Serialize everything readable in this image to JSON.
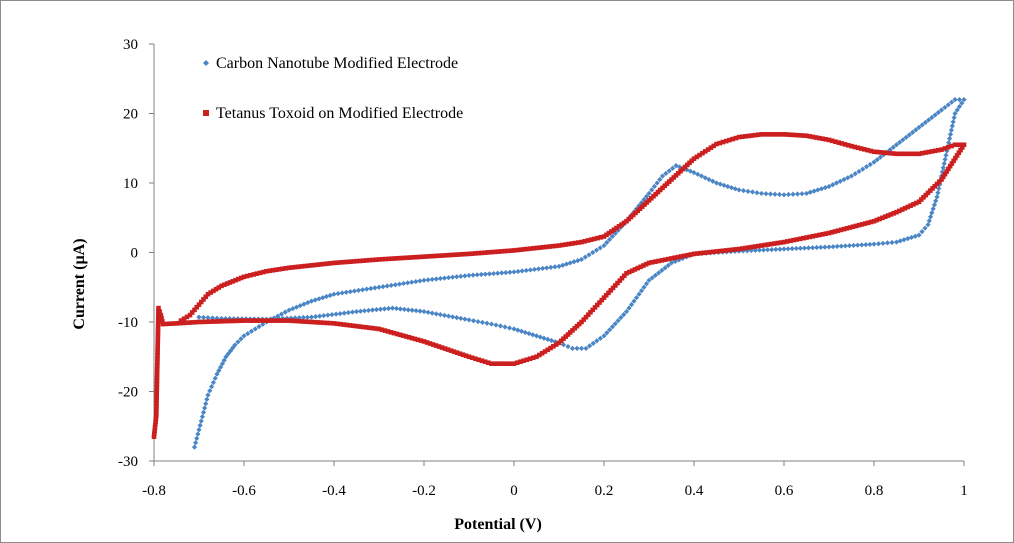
{
  "chart_data": {
    "type": "scatter",
    "xlabel": "Potential (V)",
    "ylabel": "Current (µA)",
    "xlim": [
      -0.8,
      1
    ],
    "ylim": [
      -30,
      30
    ],
    "xticks": [
      -0.8,
      -0.6,
      -0.4,
      -0.2,
      0,
      0.2,
      0.4,
      0.6,
      0.8,
      1
    ],
    "yticks": [
      -30,
      -20,
      -10,
      0,
      10,
      20,
      30
    ],
    "grid": false,
    "legend_position": "top-left",
    "series": [
      {
        "name": "Carbon Nanotube Modified Electrode",
        "color": "#4a86c5",
        "marker": "diamond",
        "points": [
          [
            -0.71,
            -28
          ],
          [
            -0.7,
            -25.5
          ],
          [
            -0.69,
            -23
          ],
          [
            -0.68,
            -20.5
          ],
          [
            -0.66,
            -17.5
          ],
          [
            -0.64,
            -15
          ],
          [
            -0.62,
            -13.3
          ],
          [
            -0.6,
            -12
          ],
          [
            -0.55,
            -10
          ],
          [
            -0.5,
            -8.3
          ],
          [
            -0.45,
            -7
          ],
          [
            -0.4,
            -6
          ],
          [
            -0.3,
            -5
          ],
          [
            -0.2,
            -4
          ],
          [
            -0.1,
            -3.3
          ],
          [
            0.0,
            -2.8
          ],
          [
            0.1,
            -2
          ],
          [
            0.15,
            -1
          ],
          [
            0.2,
            1
          ],
          [
            0.25,
            4.5
          ],
          [
            0.3,
            8.5
          ],
          [
            0.33,
            11
          ],
          [
            0.36,
            12.5
          ],
          [
            0.4,
            11.5
          ],
          [
            0.45,
            10
          ],
          [
            0.5,
            9
          ],
          [
            0.55,
            8.5
          ],
          [
            0.6,
            8.3
          ],
          [
            0.65,
            8.5
          ],
          [
            0.7,
            9.5
          ],
          [
            0.75,
            11
          ],
          [
            0.8,
            13
          ],
          [
            0.85,
            15.5
          ],
          [
            0.9,
            18
          ],
          [
            0.95,
            20.5
          ],
          [
            0.98,
            22
          ],
          [
            1.0,
            22
          ],
          [
            0.98,
            20
          ],
          [
            0.96,
            14
          ],
          [
            0.94,
            8
          ],
          [
            0.92,
            4
          ],
          [
            0.9,
            2.5
          ],
          [
            0.85,
            1.5
          ],
          [
            0.8,
            1.2
          ],
          [
            0.7,
            0.8
          ],
          [
            0.6,
            0.5
          ],
          [
            0.5,
            0.2
          ],
          [
            0.4,
            -0.2
          ],
          [
            0.35,
            -1.5
          ],
          [
            0.3,
            -4
          ],
          [
            0.25,
            -8.5
          ],
          [
            0.2,
            -12
          ],
          [
            0.16,
            -13.8
          ],
          [
            0.13,
            -13.8
          ],
          [
            0.1,
            -13
          ],
          [
            0.05,
            -12
          ],
          [
            0.0,
            -11
          ],
          [
            -0.05,
            -10.3
          ],
          [
            -0.1,
            -9.7
          ],
          [
            -0.2,
            -8.5
          ],
          [
            -0.27,
            -8
          ],
          [
            -0.35,
            -8.5
          ],
          [
            -0.45,
            -9.3
          ],
          [
            -0.55,
            -9.6
          ],
          [
            -0.65,
            -9.5
          ],
          [
            -0.7,
            -9.3
          ]
        ]
      },
      {
        "name": "Tetanus Toxoid on Modified Electrode",
        "color": "#cc1f1f",
        "marker": "square",
        "points": [
          [
            -0.8,
            -26.5
          ],
          [
            -0.795,
            -23.5
          ],
          [
            -0.79,
            -8
          ],
          [
            -0.785,
            -9
          ],
          [
            -0.78,
            -10.3
          ],
          [
            -0.75,
            -10.2
          ],
          [
            -0.7,
            -10
          ],
          [
            -0.6,
            -9.8
          ],
          [
            -0.5,
            -9.8
          ],
          [
            -0.4,
            -10.2
          ],
          [
            -0.3,
            -11
          ],
          [
            -0.2,
            -12.8
          ],
          [
            -0.1,
            -15
          ],
          [
            -0.05,
            -16
          ],
          [
            0.0,
            -16
          ],
          [
            0.05,
            -15
          ],
          [
            0.1,
            -13
          ],
          [
            0.15,
            -10
          ],
          [
            0.2,
            -6.5
          ],
          [
            0.25,
            -3
          ],
          [
            0.3,
            -1.5
          ],
          [
            0.4,
            -0.2
          ],
          [
            0.5,
            0.5
          ],
          [
            0.6,
            1.5
          ],
          [
            0.7,
            2.8
          ],
          [
            0.8,
            4.5
          ],
          [
            0.85,
            5.8
          ],
          [
            0.9,
            7.3
          ],
          [
            0.95,
            10.5
          ],
          [
            1.0,
            15.5
          ],
          [
            0.98,
            15.5
          ],
          [
            0.95,
            14.8
          ],
          [
            0.9,
            14.2
          ],
          [
            0.85,
            14.2
          ],
          [
            0.8,
            14.5
          ],
          [
            0.75,
            15.3
          ],
          [
            0.7,
            16.2
          ],
          [
            0.65,
            16.8
          ],
          [
            0.6,
            17
          ],
          [
            0.55,
            17
          ],
          [
            0.5,
            16.6
          ],
          [
            0.45,
            15.6
          ],
          [
            0.4,
            13.5
          ],
          [
            0.35,
            10.5
          ],
          [
            0.3,
            7.5
          ],
          [
            0.25,
            4.5
          ],
          [
            0.2,
            2.3
          ],
          [
            0.15,
            1.5
          ],
          [
            0.1,
            1
          ],
          [
            0.0,
            0.3
          ],
          [
            -0.1,
            -0.2
          ],
          [
            -0.2,
            -0.6
          ],
          [
            -0.3,
            -1
          ],
          [
            -0.4,
            -1.5
          ],
          [
            -0.5,
            -2.2
          ],
          [
            -0.55,
            -2.7
          ],
          [
            -0.6,
            -3.5
          ],
          [
            -0.65,
            -4.8
          ],
          [
            -0.68,
            -6
          ],
          [
            -0.7,
            -7.5
          ],
          [
            -0.72,
            -9
          ],
          [
            -0.74,
            -9.8
          ]
        ]
      }
    ]
  }
}
